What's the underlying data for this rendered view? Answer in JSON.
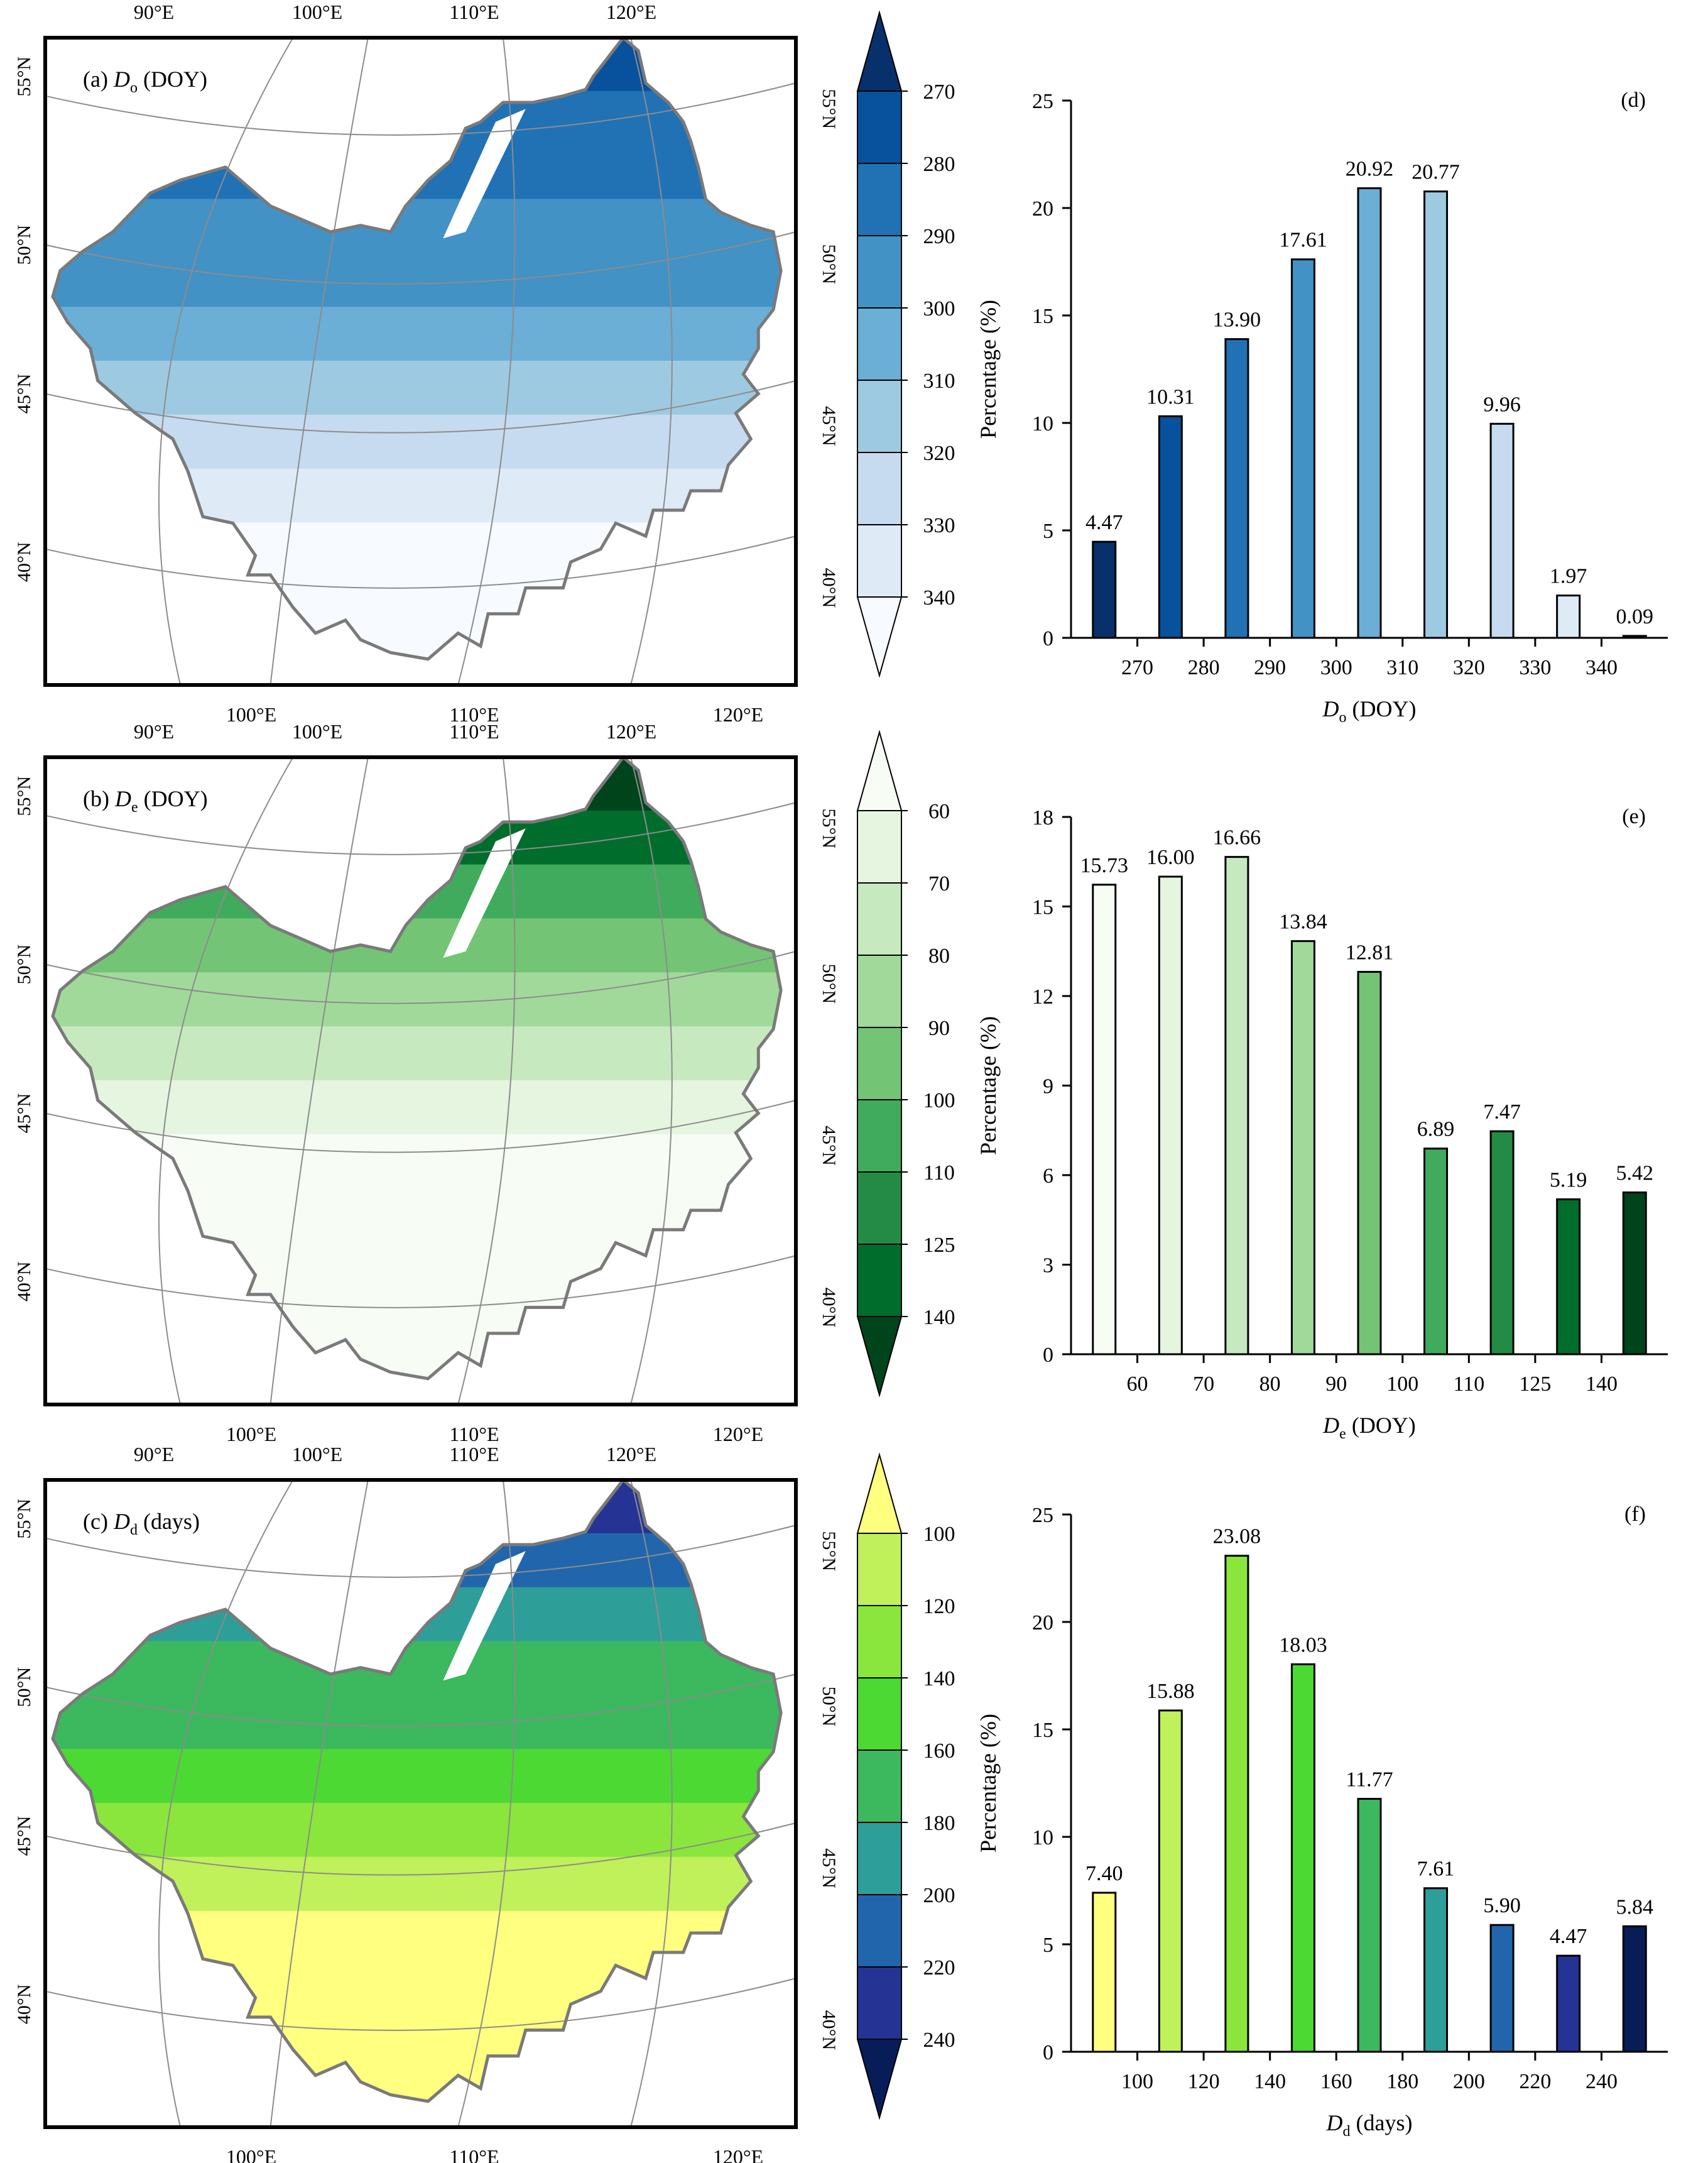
{
  "panels": [
    {
      "id": "a",
      "map_label": "(a)",
      "var_letter": "D",
      "var_sub": "o",
      "var_unit": "(DOY)",
      "legend_labels": [
        "270",
        "280",
        "290",
        "300",
        "310",
        "320",
        "330",
        "340"
      ],
      "colors": [
        "#08306b",
        "#08519c",
        "#2171b5",
        "#4292c6",
        "#6baed6",
        "#9ecae1",
        "#c6dbef",
        "#deebf7",
        "#f7fbff"
      ],
      "top_lon_labels": [
        "90°E",
        "100°E",
        "110°E",
        "120°E"
      ],
      "bottom_lon_labels": [
        "100°E",
        "110°E",
        "120°E"
      ],
      "left_lat_labels": [
        "55°N",
        "50°N",
        "45°N",
        "40°N"
      ],
      "right_lat_labels": [
        "55°N",
        "50°N",
        "45°N",
        "40°N"
      ]
    },
    {
      "id": "b",
      "map_label": "(b)",
      "var_letter": "D",
      "var_sub": "e",
      "var_unit": "(DOY)",
      "legend_labels": [
        "60",
        "70",
        "80",
        "90",
        "100",
        "110",
        "125",
        "140"
      ],
      "colors": [
        "#f7fcf5",
        "#e5f5e0",
        "#c7e9c0",
        "#a1d99b",
        "#74c476",
        "#41ab5d",
        "#238b45",
        "#006d2c",
        "#00441b"
      ],
      "top_lon_labels": [
        "90°E",
        "100°E",
        "110°E",
        "120°E"
      ],
      "bottom_lon_labels": [
        "100°E",
        "110°E",
        "120°E"
      ],
      "left_lat_labels": [
        "55°N",
        "50°N",
        "45°N",
        "40°N"
      ],
      "right_lat_labels": [
        "55°N",
        "50°N",
        "45°N",
        "40°N"
      ]
    },
    {
      "id": "c",
      "map_label": "(c)",
      "var_letter": "D",
      "var_sub": "d",
      "var_unit": "(days)",
      "legend_labels": [
        "100",
        "120",
        "140",
        "160",
        "180",
        "200",
        "220",
        "240"
      ],
      "colors": [
        "#ffff80",
        "#c0f05a",
        "#8ae63c",
        "#4cd933",
        "#3cb85e",
        "#2e9e98",
        "#2166ac",
        "#253494",
        "#081d58"
      ],
      "top_lon_labels": [
        "90°E",
        "100°E",
        "110°E",
        "120°E"
      ],
      "bottom_lon_labels": [
        "100°E",
        "110°E",
        "120°E"
      ],
      "left_lat_labels": [
        "55°N",
        "50°N",
        "45°N",
        "40°N"
      ],
      "right_lat_labels": [
        "55°N",
        "50°N",
        "45°N",
        "40°N"
      ]
    }
  ],
  "chart_data": [
    {
      "type": "bar",
      "panel_label": "(d)",
      "ylabel": "Percentage (%)",
      "xlabel_letter": "D",
      "xlabel_sub": "o",
      "xlabel_unit": "(DOY)",
      "ylim": [
        0,
        25
      ],
      "yticks": [
        "0",
        "5",
        "10",
        "15",
        "20",
        "25"
      ],
      "xticks": [
        "270",
        "280",
        "290",
        "300",
        "310",
        "320",
        "330",
        "340"
      ],
      "values": [
        4.47,
        10.31,
        13.9,
        17.61,
        20.92,
        20.77,
        9.96,
        1.97,
        0.09
      ],
      "value_labels": [
        "4.47",
        "10.31",
        "13.90",
        "17.61",
        "20.92",
        "20.77",
        "9.96",
        "1.97",
        "0.09"
      ],
      "colors": [
        "#08306b",
        "#08519c",
        "#2171b5",
        "#4292c6",
        "#6baed6",
        "#9ecae1",
        "#c6dbef",
        "#deebf7",
        "#f7fbff"
      ]
    },
    {
      "type": "bar",
      "panel_label": "(e)",
      "ylabel": "Percentage (%)",
      "xlabel_letter": "D",
      "xlabel_sub": "e",
      "xlabel_unit": "(DOY)",
      "ylim": [
        0,
        18
      ],
      "yticks": [
        "0",
        "3",
        "6",
        "9",
        "12",
        "15",
        "18"
      ],
      "xticks": [
        "60",
        "70",
        "80",
        "90",
        "100",
        "110",
        "125",
        "140"
      ],
      "values": [
        15.73,
        16.0,
        16.66,
        13.84,
        12.81,
        6.89,
        7.47,
        5.19,
        5.42
      ],
      "value_labels": [
        "15.73",
        "16.00",
        "16.66",
        "13.84",
        "12.81",
        "6.89",
        "7.47",
        "5.19",
        "5.42"
      ],
      "colors": [
        "#f7fcf5",
        "#e5f5e0",
        "#c7e9c0",
        "#a1d99b",
        "#74c476",
        "#41ab5d",
        "#238b45",
        "#006d2c",
        "#00441b"
      ]
    },
    {
      "type": "bar",
      "panel_label": "(f)",
      "ylabel": "Percentage (%)",
      "xlabel_letter": "D",
      "xlabel_sub": "d",
      "xlabel_unit": "(days)",
      "ylim": [
        0,
        25
      ],
      "yticks": [
        "0",
        "5",
        "10",
        "15",
        "20",
        "25"
      ],
      "xticks": [
        "100",
        "120",
        "140",
        "160",
        "180",
        "200",
        "220",
        "240"
      ],
      "values": [
        7.4,
        15.88,
        23.08,
        18.03,
        11.77,
        7.61,
        5.9,
        4.47,
        5.84
      ],
      "value_labels": [
        "7.40",
        "15.88",
        "23.08",
        "18.03",
        "11.77",
        "7.61",
        "5.90",
        "4.47",
        "5.84"
      ],
      "colors": [
        "#ffff80",
        "#c0f05a",
        "#8ae63c",
        "#4cd933",
        "#3cb85e",
        "#2e9e98",
        "#2166ac",
        "#253494",
        "#081d58"
      ]
    }
  ]
}
